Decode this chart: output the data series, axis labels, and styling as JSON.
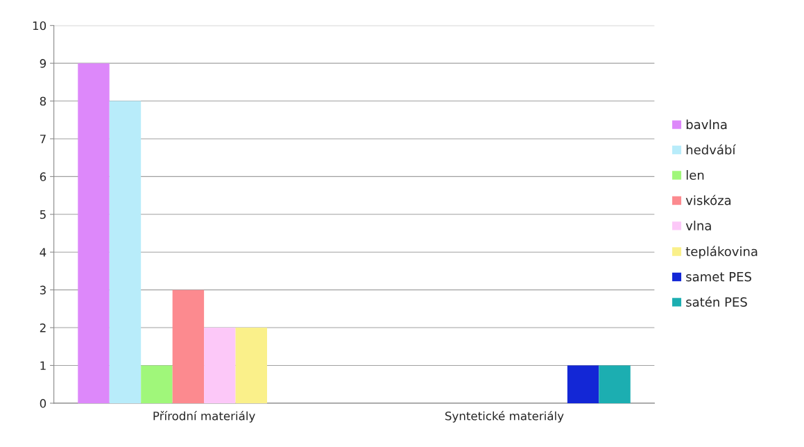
{
  "chart_data": {
    "type": "bar",
    "categories": [
      "Přírodní materiály",
      "Syntetické materiály"
    ],
    "series": [
      {
        "name": "bavlna",
        "color": "#dd88fa",
        "values": [
          9,
          0
        ]
      },
      {
        "name": "hedvábí",
        "color": "#b8ecfa",
        "values": [
          8,
          0
        ]
      },
      {
        "name": "len",
        "color": "#a0f77a",
        "values": [
          1,
          0
        ]
      },
      {
        "name": "viskóza",
        "color": "#fc8a8f",
        "values": [
          3,
          0
        ]
      },
      {
        "name": "vlna",
        "color": "#fcc8f8",
        "values": [
          2,
          0
        ]
      },
      {
        "name": "teplákovina",
        "color": "#faf08a",
        "values": [
          2,
          0
        ]
      },
      {
        "name": "samet PES",
        "color": "#1327d6",
        "values": [
          0,
          1
        ]
      },
      {
        "name": "satén PES",
        "color": "#1caeb1",
        "values": [
          0,
          1
        ]
      }
    ],
    "ylim": [
      0,
      10
    ],
    "yticks": [
      0,
      1,
      2,
      3,
      4,
      5,
      6,
      7,
      8,
      9,
      10
    ],
    "grid": "y",
    "legend": "right"
  }
}
